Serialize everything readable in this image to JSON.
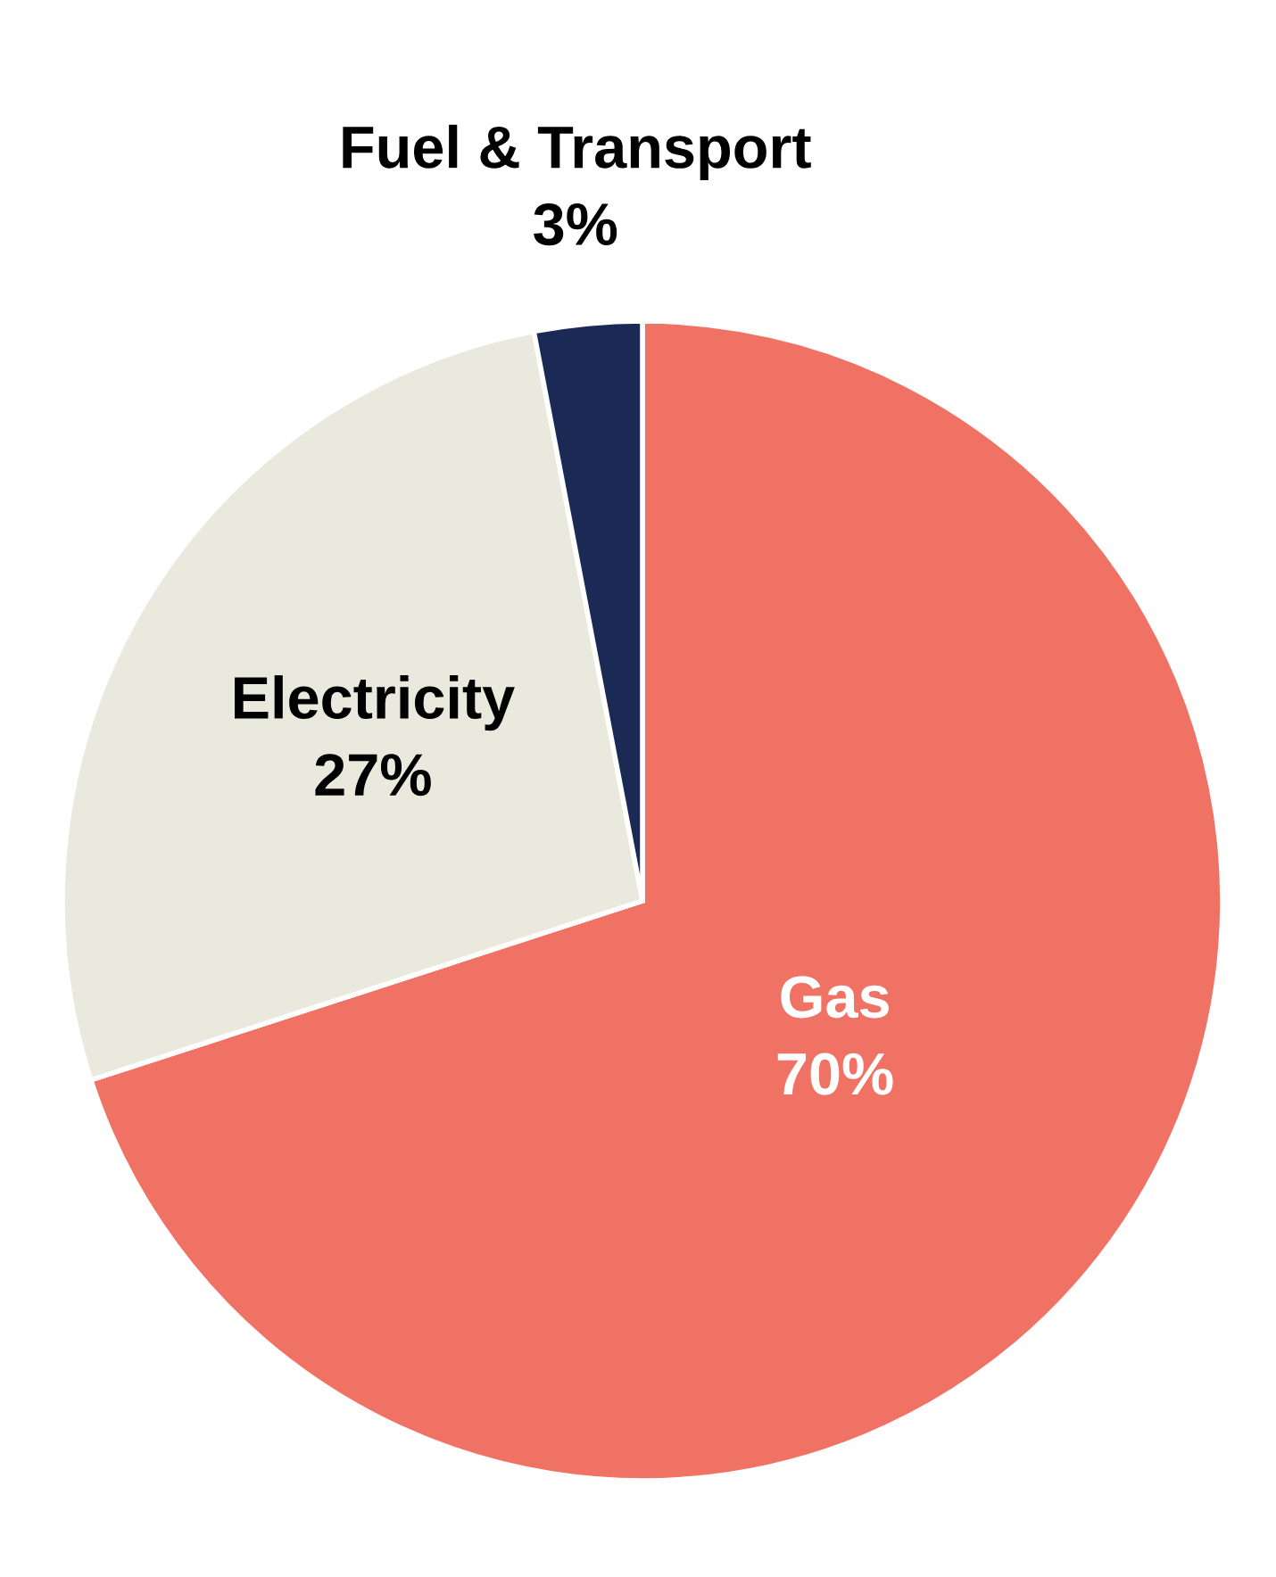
{
  "chart_data": {
    "type": "pie",
    "categories": [
      "Gas",
      "Electricity",
      "Fuel & Transport"
    ],
    "values": [
      70,
      27,
      3
    ],
    "colors": [
      "#f07264",
      "#e9e9de",
      "#1b2a55"
    ],
    "value_labels": [
      "70%",
      "27%",
      "3%"
    ]
  }
}
